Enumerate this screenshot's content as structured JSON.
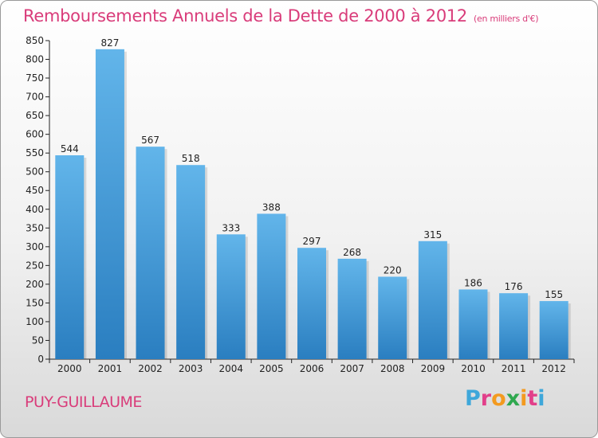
{
  "header": {
    "title": "Remboursements Annuels de la Dette de 2000 à 2012",
    "subtitle": "(en milliers d'€)"
  },
  "footer": {
    "commune": "PUY-GUILLAUME",
    "logo": "Proxiti",
    "logo_colors": [
      "#3ea7da",
      "#e23f8a",
      "#f39a1f",
      "#2fa84f",
      "#f39a1f",
      "#e23f8a",
      "#3ea7da"
    ]
  },
  "colors": {
    "title": "#d93c7a",
    "bar_top": "#62b5ea",
    "bar_bottom": "#2a7ec0",
    "axis": "#222222"
  },
  "chart_data": {
    "type": "bar",
    "title": "Remboursements Annuels de la Dette de 2000 à 2012",
    "subtitle": "(en milliers d'€)",
    "categories": [
      "2000",
      "2001",
      "2002",
      "2003",
      "2004",
      "2005",
      "2006",
      "2007",
      "2008",
      "2009",
      "2010",
      "2011",
      "2012"
    ],
    "values": [
      544,
      827,
      567,
      518,
      333,
      388,
      297,
      268,
      220,
      315,
      186,
      176,
      155
    ],
    "ylim": [
      0,
      850
    ],
    "yticks": [
      0,
      50,
      100,
      150,
      200,
      250,
      300,
      350,
      400,
      450,
      500,
      550,
      600,
      650,
      700,
      750,
      800,
      850
    ],
    "grid": false,
    "data_labels": true
  }
}
